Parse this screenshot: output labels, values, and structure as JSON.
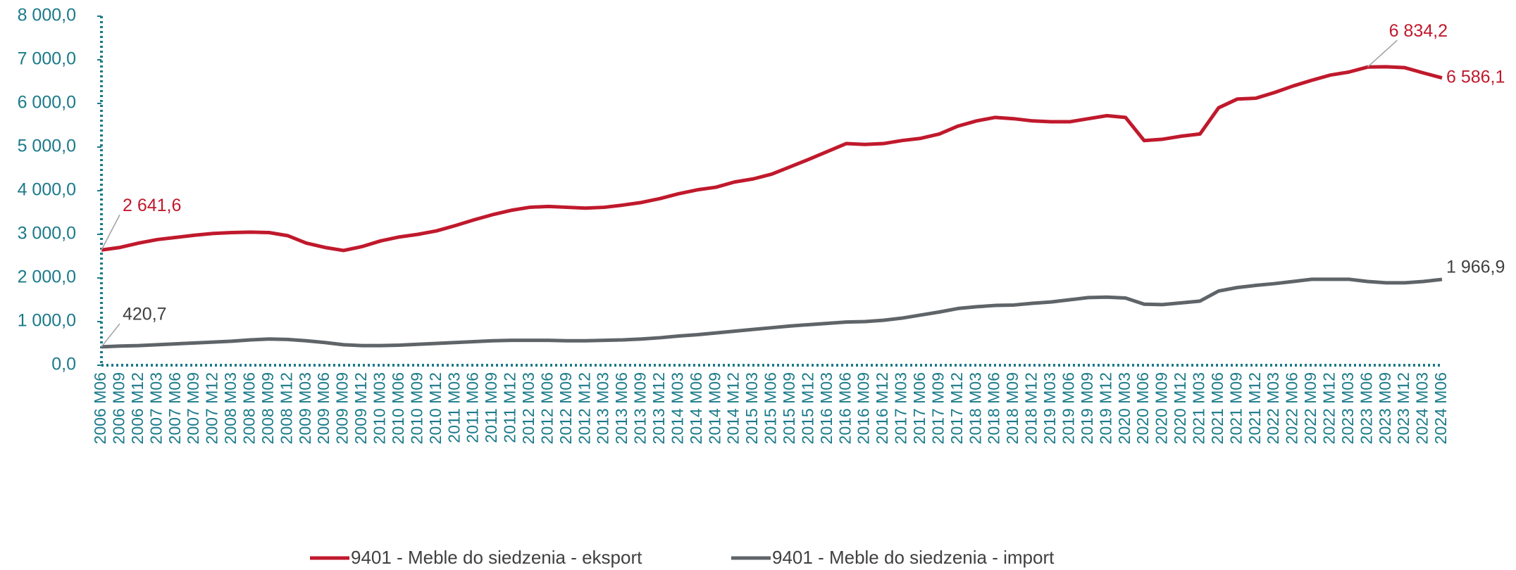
{
  "chart_data": {
    "type": "line",
    "categories": [
      "2006 M06",
      "2006 M09",
      "2006 M12",
      "2007 M03",
      "2007 M06",
      "2007 M09",
      "2007 M12",
      "2008 M03",
      "2008 M06",
      "2008 M09",
      "2008 M12",
      "2009 M03",
      "2009 M06",
      "2009 M09",
      "2009 M12",
      "2010 M03",
      "2010 M06",
      "2010 M09",
      "2010 M12",
      "2011 M03",
      "2011 M06",
      "2011 M09",
      "2011 M12",
      "2012 M03",
      "2012 M06",
      "2012 M09",
      "2012 M12",
      "2013 M03",
      "2013 M06",
      "2013 M09",
      "2013 M12",
      "2014 M03",
      "2014 M06",
      "2014 M09",
      "2014 M12",
      "2015 M03",
      "2015 M06",
      "2015 M09",
      "2015 M12",
      "2016 M03",
      "2016 M06",
      "2016 M09",
      "2016 M12",
      "2017 M03",
      "2017 M06",
      "2017 M09",
      "2017 M12",
      "2018 M03",
      "2018 M06",
      "2018 M09",
      "2018 M12",
      "2019 M03",
      "2019 M06",
      "2019 M09",
      "2019 M12",
      "2020 M03",
      "2020 M06",
      "2020 M09",
      "2020 M12",
      "2021 M03",
      "2021 M06",
      "2021 M09",
      "2021 M12",
      "2022 M03",
      "2022 M06",
      "2022 M09",
      "2022 M12",
      "2023 M03",
      "2023 M06",
      "2023 M09",
      "2023 M12",
      "2024 M03",
      "2024 M06"
    ],
    "series": [
      {
        "name": "9401 - Meble do siedzenia - eksport",
        "color": "#c0192c",
        "values": [
          2641.6,
          2700,
          2800,
          2880,
          2930,
          2980,
          3020,
          3040,
          3050,
          3040,
          2970,
          2800,
          2700,
          2630,
          2720,
          2850,
          2940,
          3000,
          3080,
          3200,
          3330,
          3450,
          3550,
          3620,
          3640,
          3620,
          3600,
          3620,
          3670,
          3730,
          3820,
          3930,
          4020,
          4080,
          4200,
          4270,
          4380,
          4550,
          4720,
          4900,
          5080,
          5060,
          5080,
          5150,
          5200,
          5300,
          5480,
          5600,
          5680,
          5650,
          5600,
          5580,
          5580,
          5650,
          5720,
          5680,
          5150,
          5180,
          5250,
          5300,
          5900,
          6100,
          6120,
          6250,
          6400,
          6530,
          6650,
          6720,
          6834.2,
          6840,
          6820,
          6700,
          6586.1
        ],
        "value_labels": [
          "2 641,6",
          null,
          null,
          null,
          null,
          null,
          null,
          null,
          null,
          null,
          null,
          null,
          null,
          null,
          null,
          null,
          null,
          null,
          null,
          null,
          null,
          null,
          null,
          null,
          null,
          null,
          null,
          null,
          null,
          null,
          null,
          null,
          null,
          null,
          null,
          null,
          null,
          null,
          null,
          null,
          null,
          null,
          null,
          null,
          null,
          null,
          null,
          null,
          null,
          null,
          null,
          null,
          null,
          null,
          null,
          null,
          null,
          null,
          null,
          null,
          null,
          null,
          null,
          null,
          null,
          null,
          null,
          null,
          "6 834,2",
          null,
          null,
          null,
          "6 586,1"
        ]
      },
      {
        "name": "9401 - Meble do siedzenia - import",
        "color": "#5f6468",
        "values": [
          420.7,
          440,
          450,
          470,
          490,
          510,
          530,
          550,
          580,
          600,
          590,
          560,
          520,
          470,
          450,
          450,
          460,
          480,
          500,
          520,
          540,
          560,
          570,
          570,
          570,
          560,
          560,
          570,
          580,
          600,
          630,
          670,
          700,
          740,
          780,
          820,
          860,
          900,
          930,
          960,
          990,
          1000,
          1030,
          1080,
          1150,
          1220,
          1300,
          1340,
          1370,
          1380,
          1420,
          1450,
          1500,
          1550,
          1560,
          1540,
          1400,
          1390,
          1430,
          1470,
          1700,
          1780,
          1830,
          1870,
          1920,
          1970,
          1970,
          1970,
          1920,
          1890,
          1890,
          1920,
          1966.9
        ],
        "value_labels": [
          "420,7",
          null,
          null,
          null,
          null,
          null,
          null,
          null,
          null,
          null,
          null,
          null,
          null,
          null,
          null,
          null,
          null,
          null,
          null,
          null,
          null,
          null,
          null,
          null,
          null,
          null,
          null,
          null,
          null,
          null,
          null,
          null,
          null,
          null,
          null,
          null,
          null,
          null,
          null,
          null,
          null,
          null,
          null,
          null,
          null,
          null,
          null,
          null,
          null,
          null,
          null,
          null,
          null,
          null,
          null,
          null,
          null,
          null,
          null,
          null,
          null,
          null,
          null,
          null,
          null,
          null,
          null,
          null,
          null,
          null,
          null,
          null,
          "1 966,9"
        ]
      }
    ],
    "ylim": [
      0,
      8000
    ],
    "yticks": [
      {
        "value": 0,
        "label": "0,0"
      },
      {
        "value": 1000,
        "label": "1 000,0"
      },
      {
        "value": 2000,
        "label": "2 000,0"
      },
      {
        "value": 3000,
        "label": "3 000,0"
      },
      {
        "value": 4000,
        "label": "4 000,0"
      },
      {
        "value": 5000,
        "label": "5 000,0"
      },
      {
        "value": 6000,
        "label": "6 000,0"
      },
      {
        "value": 7000,
        "label": "7 000,0"
      },
      {
        "value": 8000,
        "label": "8 000,0"
      }
    ],
    "grid": false,
    "legend": "bottom"
  }
}
